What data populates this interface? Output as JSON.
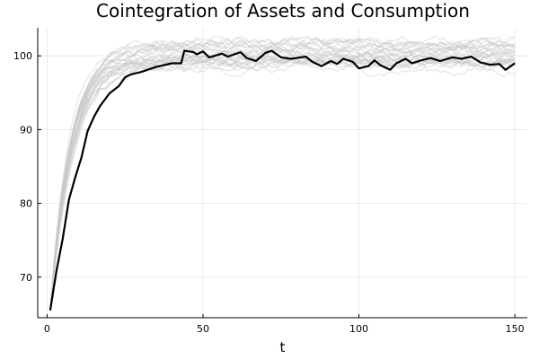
{
  "chart_data": {
    "type": "line",
    "title": "Cointegration of Assets and Consumption",
    "xlabel": "t",
    "ylabel": "",
    "xlim": [
      -3,
      154
    ],
    "ylim": [
      64.5,
      103.8
    ],
    "x_ticks": [
      0,
      50,
      100,
      150
    ],
    "y_ticks": [
      70,
      80,
      90,
      100
    ],
    "grid": true,
    "legend": "none",
    "x": [
      1,
      150
    ],
    "highlight_series": {
      "color": "#000000",
      "points": [
        [
          1,
          65.5
        ],
        [
          3,
          70.8
        ],
        [
          5,
          75.2
        ],
        [
          7,
          80.5
        ],
        [
          9,
          83.5
        ],
        [
          11,
          86.2
        ],
        [
          13,
          89.8
        ],
        [
          15,
          91.7
        ],
        [
          17,
          93.2
        ],
        [
          20,
          94.9
        ],
        [
          23,
          95.9
        ],
        [
          25,
          97.1
        ],
        [
          27,
          97.5
        ],
        [
          30,
          97.8
        ],
        [
          35,
          98.5
        ],
        [
          40,
          99.0
        ],
        [
          43,
          99.0
        ],
        [
          44,
          100.7
        ],
        [
          47,
          100.5
        ],
        [
          48,
          100.2
        ],
        [
          50,
          100.6
        ],
        [
          52,
          99.8
        ],
        [
          56,
          100.3
        ],
        [
          58,
          99.9
        ],
        [
          62,
          100.5
        ],
        [
          64,
          99.7
        ],
        [
          67,
          99.3
        ],
        [
          70,
          100.4
        ],
        [
          72,
          100.7
        ],
        [
          75,
          99.8
        ],
        [
          78,
          99.6
        ],
        [
          80,
          99.7
        ],
        [
          83,
          99.9
        ],
        [
          85,
          99.2
        ],
        [
          88,
          98.6
        ],
        [
          91,
          99.3
        ],
        [
          93,
          98.9
        ],
        [
          95,
          99.6
        ],
        [
          98,
          99.2
        ],
        [
          100,
          98.3
        ],
        [
          103,
          98.6
        ],
        [
          105,
          99.4
        ],
        [
          107,
          98.7
        ],
        [
          110,
          98.1
        ],
        [
          112,
          99.0
        ],
        [
          115,
          99.6
        ],
        [
          117,
          99.0
        ],
        [
          120,
          99.4
        ],
        [
          123,
          99.7
        ],
        [
          126,
          99.3
        ],
        [
          130,
          99.8
        ],
        [
          133,
          99.6
        ],
        [
          136,
          99.9
        ],
        [
          139,
          99.1
        ],
        [
          142,
          98.8
        ],
        [
          145,
          98.9
        ],
        [
          147,
          98.1
        ],
        [
          150,
          99.0
        ]
      ]
    },
    "background_series": {
      "color": "#c8c8c8",
      "count": 30,
      "start_value": 65.5,
      "plateau_value": 100,
      "plateau_spread": [
        98.0,
        102.0
      ]
    }
  }
}
